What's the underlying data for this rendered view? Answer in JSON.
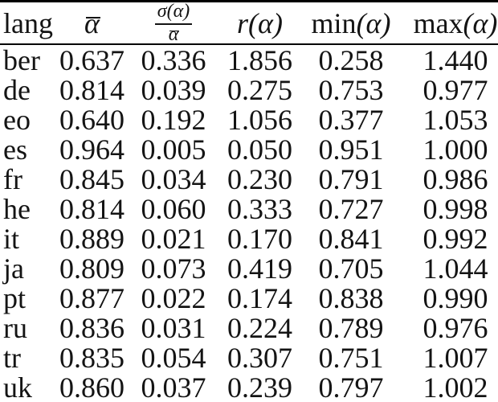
{
  "colors": {
    "background": "#ffffff",
    "text": "#141414",
    "rule": "#000000"
  },
  "table": {
    "headers": {
      "lang": "lang",
      "alpha_bar": "α",
      "ratio_numerator": "σ(α)",
      "ratio_denominator": "α",
      "r": "r(α)",
      "min_name": "min",
      "min_arg": "(α)",
      "max_name": "max",
      "max_arg": "(α)"
    },
    "rows": [
      {
        "lang": "ber",
        "alpha_mean": "0.637",
        "ratio": "0.336",
        "r": "1.856",
        "min": "0.258",
        "max": "1.440"
      },
      {
        "lang": "de",
        "alpha_mean": "0.814",
        "ratio": "0.039",
        "r": "0.275",
        "min": "0.753",
        "max": "0.977"
      },
      {
        "lang": "eo",
        "alpha_mean": "0.640",
        "ratio": "0.192",
        "r": "1.056",
        "min": "0.377",
        "max": "1.053"
      },
      {
        "lang": "es",
        "alpha_mean": "0.964",
        "ratio": "0.005",
        "r": "0.050",
        "min": "0.951",
        "max": "1.000"
      },
      {
        "lang": "fr",
        "alpha_mean": "0.845",
        "ratio": "0.034",
        "r": "0.230",
        "min": "0.791",
        "max": "0.986"
      },
      {
        "lang": "he",
        "alpha_mean": "0.814",
        "ratio": "0.060",
        "r": "0.333",
        "min": "0.727",
        "max": "0.998"
      },
      {
        "lang": "it",
        "alpha_mean": "0.889",
        "ratio": "0.021",
        "r": "0.170",
        "min": "0.841",
        "max": "0.992"
      },
      {
        "lang": "ja",
        "alpha_mean": "0.809",
        "ratio": "0.073",
        "r": "0.419",
        "min": "0.705",
        "max": "1.044"
      },
      {
        "lang": "pt",
        "alpha_mean": "0.877",
        "ratio": "0.022",
        "r": "0.174",
        "min": "0.838",
        "max": "0.990"
      },
      {
        "lang": "ru",
        "alpha_mean": "0.836",
        "ratio": "0.031",
        "r": "0.224",
        "min": "0.789",
        "max": "0.976"
      },
      {
        "lang": "tr",
        "alpha_mean": "0.835",
        "ratio": "0.054",
        "r": "0.307",
        "min": "0.751",
        "max": "1.007"
      },
      {
        "lang": "uk",
        "alpha_mean": "0.860",
        "ratio": "0.037",
        "r": "0.239",
        "min": "0.797",
        "max": "1.002"
      }
    ]
  }
}
